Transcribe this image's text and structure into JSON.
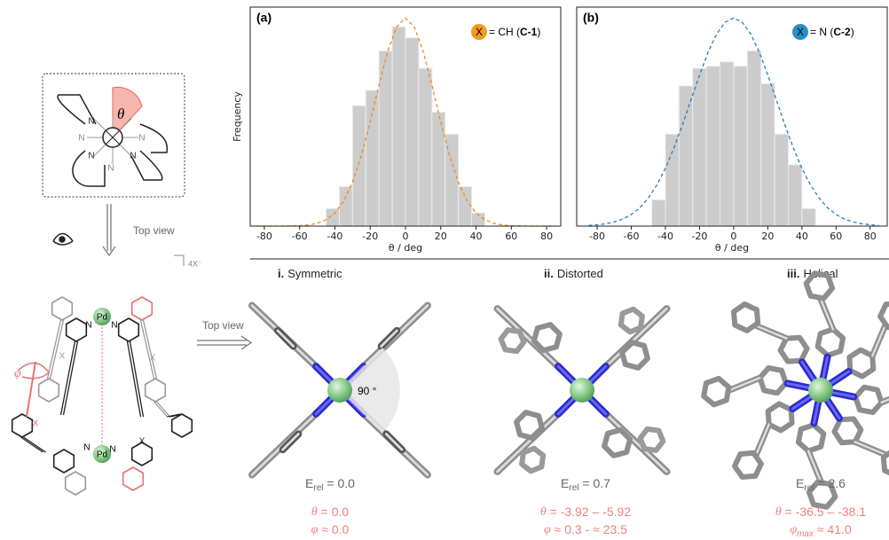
{
  "chart_data": [
    {
      "type": "histogram",
      "panel_label": "(a)",
      "marker_label": "X",
      "marker_color": "#f39a1f",
      "annotation_prefix": "= CH (",
      "compound": "C-1",
      "annotation_suffix": ")",
      "xlabel": "θ / deg",
      "ylabel": "Frequency",
      "bins": [
        -45,
        -37.5,
        -30,
        -22.5,
        -15,
        -7.5,
        0,
        7.5,
        15,
        22.5,
        30,
        37.5,
        45
      ],
      "counts": [
        8,
        18,
        55,
        62,
        80,
        91,
        86,
        72,
        52,
        42,
        18,
        6
      ],
      "color": "#cccccc",
      "fit": {
        "color": "#f08a1c",
        "dashed": true,
        "x": [
          -85,
          -80,
          -75,
          -70,
          -65,
          -60,
          -55,
          -50,
          -45,
          -40,
          -35,
          -30,
          -25,
          -20,
          -15,
          -10,
          -5,
          0,
          5,
          10,
          15,
          20,
          25,
          30,
          35,
          40,
          45,
          50,
          55,
          60,
          65,
          70,
          75,
          80,
          85
        ],
        "values": [
          0,
          0,
          0,
          0,
          0.1,
          0.2,
          0.5,
          1.3,
          2.9,
          6.0,
          11.4,
          20.0,
          32.2,
          47.5,
          64.4,
          79.9,
          91.0,
          95,
          91.0,
          79.9,
          64.4,
          47.5,
          32.2,
          20.0,
          11.4,
          6.0,
          2.9,
          1.3,
          0.5,
          0.2,
          0.1,
          0,
          0,
          0,
          0
        ]
      },
      "xlim": [
        -88,
        88
      ],
      "ylim": [
        0,
        100
      ],
      "xticks": [
        -80,
        -60,
        -40,
        -20,
        0,
        20,
        40,
        60,
        80
      ]
    },
    {
      "type": "histogram",
      "panel_label": "(b)",
      "marker_label": "X",
      "marker_color": "#2a8fc4",
      "annotation_prefix": "= N  (",
      "compound": "C-2",
      "annotation_suffix": ")",
      "xlabel": "θ / deg",
      "bins": [
        -48,
        -40,
        -32,
        -24,
        -16,
        -8,
        0,
        8,
        16,
        24,
        32,
        40,
        48
      ],
      "counts": [
        12,
        42,
        64,
        72,
        73,
        75,
        73,
        80,
        65,
        42,
        28,
        8
      ],
      "color": "#cccccc",
      "fit": {
        "color": "#2a7fb5",
        "dashed": true,
        "x": [
          -85,
          -80,
          -75,
          -70,
          -65,
          -60,
          -55,
          -50,
          -45,
          -40,
          -35,
          -30,
          -25,
          -20,
          -15,
          -10,
          -5,
          0,
          5,
          10,
          15,
          20,
          25,
          30,
          35,
          40,
          45,
          50,
          55,
          60,
          65,
          70,
          75,
          80,
          85
        ],
        "values": [
          0.3,
          0.6,
          1.1,
          1.9,
          3.2,
          5.3,
          8.4,
          12.9,
          18.8,
          26.4,
          35.7,
          46.2,
          57.6,
          69.0,
          79.4,
          87.7,
          93.1,
          95,
          93.1,
          87.7,
          79.4,
          69.0,
          57.6,
          46.2,
          35.7,
          26.4,
          18.8,
          12.9,
          8.4,
          5.3,
          3.2,
          1.9,
          1.1,
          0.6,
          0.3
        ]
      },
      "xlim": [
        -92,
        90
      ],
      "ylim": [
        0,
        100
      ],
      "xticks": [
        -80,
        -60,
        -40,
        -20,
        0,
        20,
        40,
        60,
        80
      ]
    }
  ],
  "scheme": {
    "theta": "θ",
    "n_label": "N",
    "top_view": "Top view",
    "pd": "Pd",
    "x_label": "X",
    "phi": "φ",
    "counterion": "4X⁻"
  },
  "angle_label": "90 °",
  "structures": [
    {
      "number": "i.",
      "name": "Symmetric",
      "energy_symbol": "E",
      "energy_sub": "rel",
      "energy_value": " = 0.0",
      "theta_symbol": "θ",
      "theta_value": " = 0.0",
      "phi_symbol": "φ",
      "phi_value": " ≈ 0.0"
    },
    {
      "number": "ii.",
      "name": "Distorted",
      "energy_symbol": "E",
      "energy_sub": "rel",
      "energy_value": " = 0.7",
      "theta_symbol": "θ",
      "theta_value": " = -3.92 – -5.92",
      "phi_symbol": "φ",
      "phi_value": " ≈ 0.3 - ≈ 23.5"
    },
    {
      "number": "iii.",
      "name": "Helical",
      "energy_symbol": "E",
      "energy_sub": "rel",
      "energy_value": " = 2.6",
      "theta_symbol": "θ",
      "theta_value": " = -36.5 – -38.1",
      "phi_symbol": "φ",
      "phi_sub": "max",
      "phi_value": " ≈ 41.0"
    }
  ]
}
